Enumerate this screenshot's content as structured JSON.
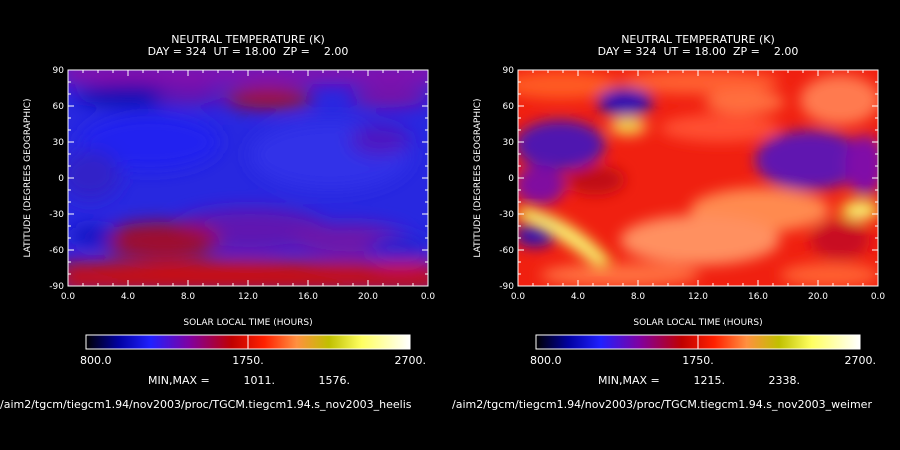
{
  "chart_data": [
    {
      "type": "heatmap",
      "title": "NEUTRAL TEMPERATURE (K)",
      "subtitle": "DAY = 324  UT = 18.00  ZP =    2.00",
      "xlabel": "SOLAR LOCAL TIME (HOURS)",
      "ylabel": "LATITUDE (DEGREES GEOGRAPHIC)",
      "xlim": [
        0,
        24
      ],
      "ylim": [
        -90,
        90
      ],
      "xticks": [
        "0.0",
        "4.0",
        "8.0",
        "12.0",
        "16.0",
        "20.0",
        "0.0"
      ],
      "yticks": [
        "-90",
        "-60",
        "-30",
        "0",
        "30",
        "60",
        "90"
      ],
      "colorbar": {
        "min": "800.0",
        "mid": "1750.",
        "max": "2700."
      },
      "minmax_label": "MIN,MAX =",
      "min": "1011.",
      "max": "1576.",
      "footer": "/aim2/tgcm/tiegcm1.94/nov2003/proc/TGCM.tiegcm1.94.s_nov2003_heelis",
      "colorscale": [
        "#000000",
        "#0000a0",
        "#2020ff",
        "#8000a0",
        "#c00000",
        "#ff2000",
        "#ff9040",
        "#e0e060",
        "#ffff80",
        "#ffffff"
      ]
    },
    {
      "type": "heatmap",
      "title": "NEUTRAL TEMPERATURE (K)",
      "subtitle": "DAY = 324  UT = 18.00  ZP =    2.00",
      "xlabel": "SOLAR LOCAL TIME (HOURS)",
      "ylabel": "LATITUDE (DEGREES GEOGRAPHIC)",
      "xlim": [
        0,
        24
      ],
      "ylim": [
        -90,
        90
      ],
      "xticks": [
        "0.0",
        "4.0",
        "8.0",
        "12.0",
        "16.0",
        "20.0",
        "0.0"
      ],
      "yticks": [
        "-90",
        "-60",
        "-30",
        "0",
        "30",
        "60",
        "90"
      ],
      "colorbar": {
        "min": "800.0",
        "mid": "1750.",
        "max": "2700."
      },
      "minmax_label": "MIN,MAX =",
      "min": "1215.",
      "max": "2338.",
      "footer": "/aim2/tgcm/tiegcm1.94/nov2003/proc/TGCM.tiegcm1.94.s_nov2003_weimer",
      "colorscale": [
        "#000000",
        "#0000a0",
        "#2020ff",
        "#8000a0",
        "#c00000",
        "#ff2000",
        "#ff9040",
        "#e0e060",
        "#ffff80",
        "#ffffff"
      ]
    }
  ]
}
